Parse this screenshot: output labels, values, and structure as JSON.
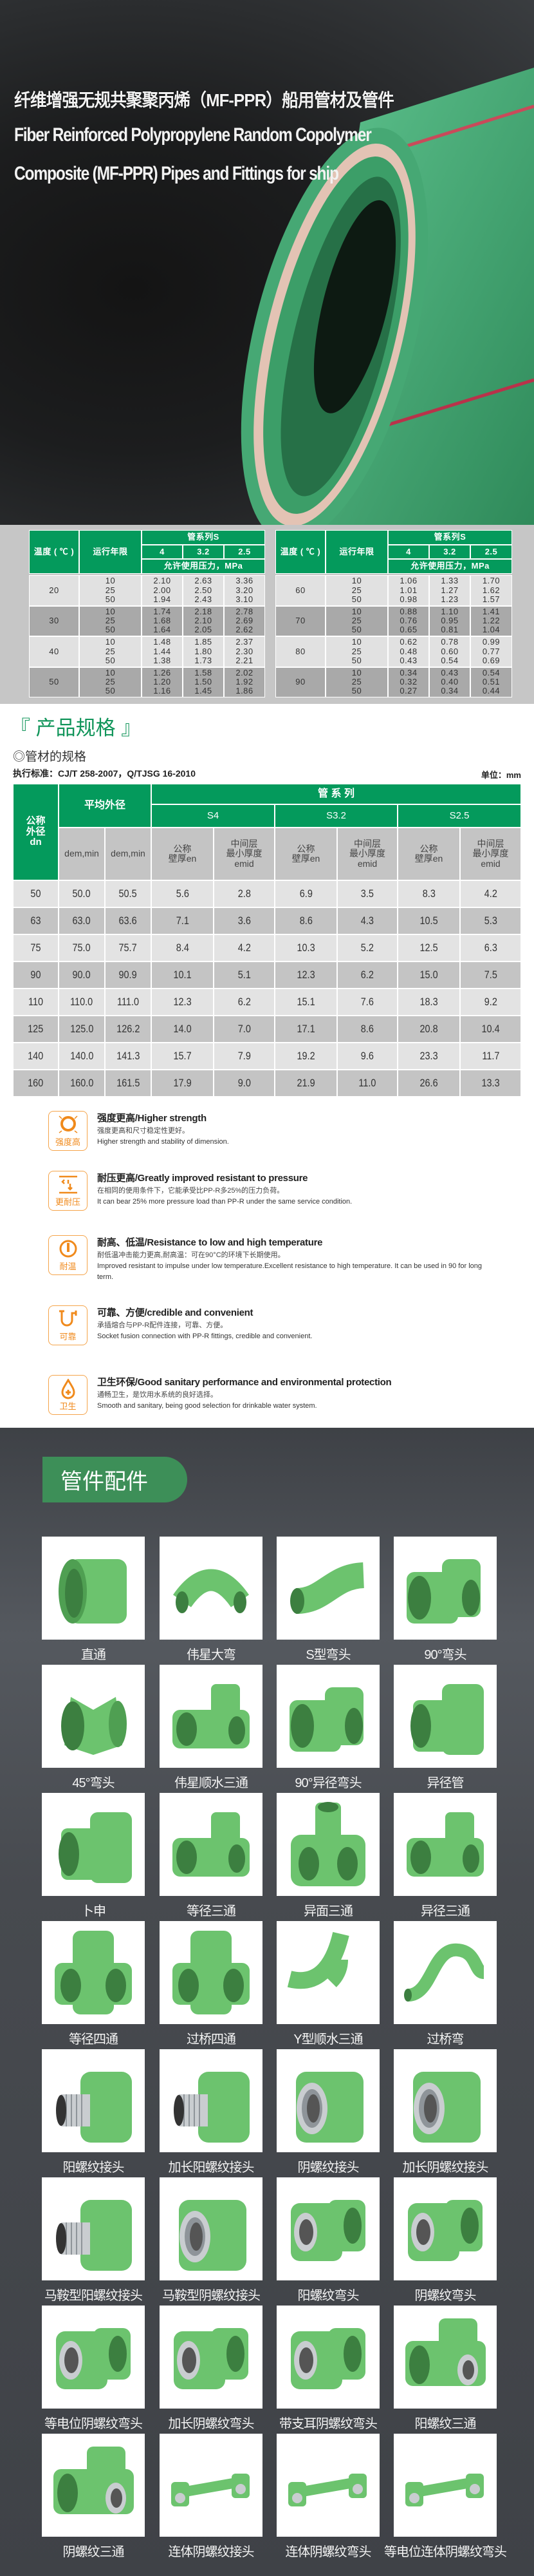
{
  "hero": {
    "title_cn": "纤维增强无规共聚聚丙烯（MF-PPR）船用管材及管件",
    "title_en_line1": "Fiber Reinforced Polypropylene Random Copolymer",
    "title_en_line2": "Composite (MF-PPR) Pipes and Fittings for ship"
  },
  "pressure": {
    "header": {
      "temp": "温度 ( ℃ )",
      "years": "运行年限",
      "series": "管系列S",
      "s_values": [
        "4",
        "3.2",
        "2.5"
      ],
      "pressure": "允许使用压力，MPa"
    },
    "tables": [
      {
        "rows": [
          {
            "temp": "20",
            "years": [
              "10",
              "25",
              "50"
            ],
            "values": [
              [
                "2.10",
                "2.00",
                "1.94"
              ],
              [
                "2.63",
                "2.50",
                "2.43"
              ],
              [
                "3.36",
                "3.20",
                "3.10"
              ]
            ]
          },
          {
            "temp": "30",
            "years": [
              "10",
              "25",
              "50"
            ],
            "values": [
              [
                "1.74",
                "1.68",
                "1.64"
              ],
              [
                "2.18",
                "2.10",
                "2.05"
              ],
              [
                "2.78",
                "2.69",
                "2.62"
              ]
            ]
          },
          {
            "temp": "40",
            "years": [
              "10",
              "25",
              "50"
            ],
            "values": [
              [
                "1.48",
                "1.44",
                "1.38"
              ],
              [
                "1.85",
                "1.80",
                "1.73"
              ],
              [
                "2.37",
                "2.30",
                "2.21"
              ]
            ]
          },
          {
            "temp": "50",
            "years": [
              "10",
              "25",
              "50"
            ],
            "values": [
              [
                "1.26",
                "1.20",
                "1.16"
              ],
              [
                "1.58",
                "1.50",
                "1.45"
              ],
              [
                "2.02",
                "1.92",
                "1.86"
              ]
            ]
          }
        ]
      },
      {
        "rows": [
          {
            "temp": "60",
            "years": [
              "10",
              "25",
              "50"
            ],
            "values": [
              [
                "1.06",
                "1.01",
                "0.98"
              ],
              [
                "1.33",
                "1.27",
                "1.23"
              ],
              [
                "1.70",
                "1.62",
                "1.57"
              ]
            ]
          },
          {
            "temp": "70",
            "years": [
              "10",
              "25",
              "50"
            ],
            "values": [
              [
                "0.88",
                "0.76",
                "0.65"
              ],
              [
                "1.10",
                "0.95",
                "0.81"
              ],
              [
                "1.41",
                "1.22",
                "1.04"
              ]
            ]
          },
          {
            "temp": "80",
            "years": [
              "10",
              "25",
              "50"
            ],
            "values": [
              [
                "0.62",
                "0.48",
                "0.43"
              ],
              [
                "0.78",
                "0.60",
                "0.54"
              ],
              [
                "0.99",
                "0.77",
                "0.69"
              ]
            ]
          },
          {
            "temp": "90",
            "years": [
              "10",
              "25",
              "50"
            ],
            "values": [
              [
                "0.34",
                "0.32",
                "0.27"
              ],
              [
                "0.43",
                "0.40",
                "0.34"
              ],
              [
                "0.54",
                "0.51",
                "0.44"
              ]
            ]
          }
        ]
      }
    ]
  },
  "spec": {
    "title": "『 产品规格 』",
    "subtitle": "◎管材的规格",
    "standard": "执行标准：CJ/T 258-2007，Q/TJSG 16-2010",
    "unit": "单位：mm",
    "header": {
      "nominal": [
        "公称",
        "外径",
        "dn"
      ],
      "avg_od": "平均外径",
      "series": "管 系 列",
      "series_names": [
        "S4",
        "S3.2",
        "S2.5"
      ],
      "sub": [
        [
          "dem,min"
        ],
        [
          "dem,min"
        ],
        [
          "公称",
          "壁厚en"
        ],
        [
          "中间层",
          "最小厚度",
          "emid"
        ],
        [
          "公称",
          "壁厚en"
        ],
        [
          "中间层",
          "最小厚度",
          "emid"
        ],
        [
          "公称",
          "壁厚en"
        ],
        [
          "中间层",
          "最小厚度",
          "emid"
        ]
      ]
    },
    "rows": [
      [
        "50",
        "50.0",
        "50.5",
        "5.6",
        "2.8",
        "6.9",
        "3.5",
        "8.3",
        "4.2"
      ],
      [
        "63",
        "63.0",
        "63.6",
        "7.1",
        "3.6",
        "8.6",
        "4.3",
        "10.5",
        "5.3"
      ],
      [
        "75",
        "75.0",
        "75.7",
        "8.4",
        "4.2",
        "10.3",
        "5.2",
        "12.5",
        "6.3"
      ],
      [
        "90",
        "90.0",
        "90.9",
        "10.1",
        "5.1",
        "12.3",
        "6.2",
        "15.0",
        "7.5"
      ],
      [
        "110",
        "110.0",
        "111.0",
        "12.3",
        "6.2",
        "15.1",
        "7.6",
        "18.3",
        "9.2"
      ],
      [
        "125",
        "125.0",
        "126.2",
        "14.0",
        "7.0",
        "17.1",
        "8.6",
        "20.8",
        "10.4"
      ],
      [
        "140",
        "140.0",
        "141.3",
        "15.7",
        "7.9",
        "19.2",
        "9.6",
        "23.3",
        "11.7"
      ],
      [
        "160",
        "160.0",
        "161.5",
        "17.9",
        "9.0",
        "21.9",
        "11.0",
        "26.6",
        "13.3"
      ]
    ]
  },
  "features": [
    {
      "icon": "strength-ring-icon",
      "icon_label": "强度高",
      "title": "强度更高/Higher strength",
      "cn": "强度更高和尺寸稳定性更好。",
      "en": "Higher strength and stability of dimension."
    },
    {
      "icon": "pressure-arrows-icon",
      "icon_label": "更耐压",
      "title": "耐压更高/Greatly improved resistant to pressure",
      "cn": "在相同的使用条件下，它能承受比PP-R多25%的压力负荷。",
      "en": " It can bear 25% more pressure load than PP-R under the same service condition."
    },
    {
      "icon": "thermometer-icon",
      "icon_label": "耐温",
      "title": "耐高、低温/Resistance to low and high temperature",
      "cn": "耐低温冲击能力更高,耐高温：可在90°C的环境下长期使用。",
      "en": "Improved resistant to impulse under low temperature.Excellent resistance to high temperature. It can be used in 90   for long term."
    },
    {
      "icon": "pipe-connection-icon",
      "icon_label": "可靠",
      "title": "可靠、方便/credible and convenient",
      "cn": "承插熔合与PP-R配件连接，可靠、方便。",
      "en": "Socket fusion connection with PP-R fittings, credible and convenient."
    },
    {
      "icon": "water-drop-cross-icon",
      "icon_label": "卫生",
      "title": "卫生环保/Good sanitary performance and environmental protection",
      "cn": "通畅卫生，是饮用水系统的良好选择。",
      "en": "Smooth and sanitary, being good selection for drinkable water system."
    }
  ],
  "fittings": {
    "title": "管件配件",
    "accent": "#3d8f58",
    "items": [
      {
        "label": "直通",
        "icon": "coupling"
      },
      {
        "label": "伟星大弯",
        "icon": "bend"
      },
      {
        "label": "S型弯头",
        "icon": "sbend"
      },
      {
        "label": "90°弯头",
        "icon": "elbow"
      },
      {
        "label": "45°弯头",
        "icon": "elbow45"
      },
      {
        "label": "伟星顺水三通",
        "icon": "tee"
      },
      {
        "label": "90°异径弯头",
        "icon": "elbow"
      },
      {
        "label": "异径管",
        "icon": "reducer"
      },
      {
        "label": "卜申",
        "icon": "reducer"
      },
      {
        "label": "等径三通",
        "icon": "tee"
      },
      {
        "label": "异面三通",
        "icon": "tee3"
      },
      {
        "label": "异径三通",
        "icon": "tee"
      },
      {
        "label": "等径四通",
        "icon": "cross"
      },
      {
        "label": "过桥四通",
        "icon": "cross"
      },
      {
        "label": "Y型顺水三通",
        "icon": "ybend"
      },
      {
        "label": "过桥弯",
        "icon": "bridge"
      },
      {
        "label": "阳螺纹接头",
        "icon": "male"
      },
      {
        "label": "加长阳螺纹接头",
        "icon": "male"
      },
      {
        "label": "阴螺纹接头",
        "icon": "female"
      },
      {
        "label": "加长阴螺纹接头",
        "icon": "female"
      },
      {
        "label": "马鞍型阳螺纹接头",
        "icon": "male"
      },
      {
        "label": "马鞍型阴螺纹接头",
        "icon": "female"
      },
      {
        "label": "阳螺纹弯头",
        "icon": "elbowthread"
      },
      {
        "label": "阴螺纹弯头",
        "icon": "elbowthread"
      },
      {
        "label": "等电位阴螺纹弯头",
        "icon": "elbowthread"
      },
      {
        "label": "加长阴螺纹弯头",
        "icon": "elbowthread"
      },
      {
        "label": "带支耳阴螺纹弯头",
        "icon": "elbowthread"
      },
      {
        "label": "阳螺纹三通",
        "icon": "teethread"
      },
      {
        "label": "阴螺纹三通",
        "icon": "teethread"
      },
      {
        "label": "连体阴螺纹接头",
        "icon": "manifold"
      },
      {
        "label": "连体阴螺纹弯头",
        "icon": "manifold"
      },
      {
        "label": "等电位连体阴螺纹弯头",
        "icon": "manifold"
      }
    ]
  }
}
